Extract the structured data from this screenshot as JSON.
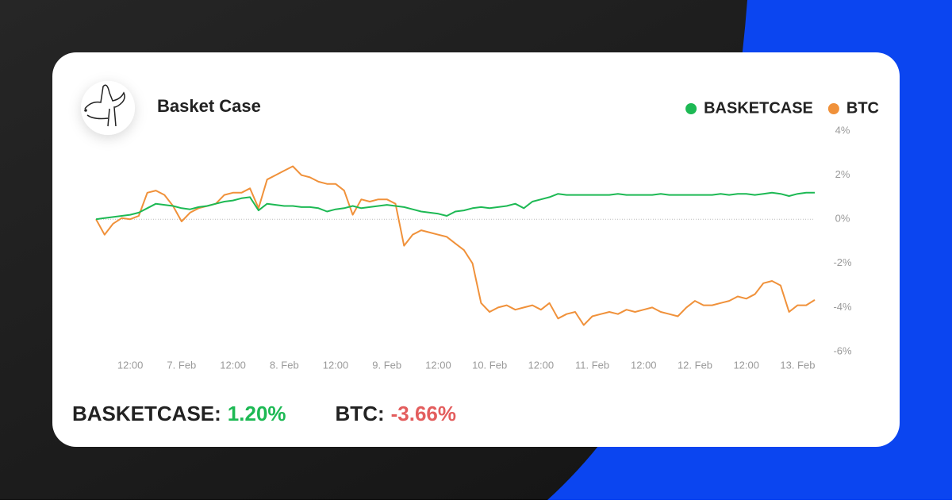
{
  "chart_data": {
    "type": "line",
    "title": "Basket Case",
    "x": [
      -20,
      -18,
      -16,
      -14,
      -12,
      -10,
      -8,
      -6,
      -4,
      -2,
      0,
      2,
      4,
      6,
      8,
      10,
      12,
      14,
      16,
      18,
      20,
      22,
      24,
      26,
      28,
      30,
      32,
      34,
      36,
      38,
      40,
      42,
      44,
      46,
      48,
      50,
      52,
      54,
      56,
      58,
      60,
      62,
      64,
      66,
      68,
      70,
      72,
      74,
      76,
      78,
      80,
      82,
      84,
      86,
      88,
      90,
      92,
      94,
      96,
      98,
      100,
      102,
      104,
      106,
      108,
      110,
      112,
      114,
      116,
      118,
      120,
      122,
      124,
      126,
      128,
      130,
      132,
      134,
      136,
      138,
      140,
      142,
      144,
      146,
      148
    ],
    "xlim": [
      -20,
      148
    ],
    "xticks": [
      {
        "value": -12,
        "label": "12:00"
      },
      {
        "value": 0,
        "label": "7. Feb"
      },
      {
        "value": 12,
        "label": "12:00"
      },
      {
        "value": 24,
        "label": "8. Feb"
      },
      {
        "value": 36,
        "label": "12:00"
      },
      {
        "value": 48,
        "label": "9. Feb"
      },
      {
        "value": 60,
        "label": "12:00"
      },
      {
        "value": 72,
        "label": "10. Feb"
      },
      {
        "value": 84,
        "label": "12:00"
      },
      {
        "value": 96,
        "label": "11. Feb"
      },
      {
        "value": 108,
        "label": "12:00"
      },
      {
        "value": 120,
        "label": "12. Feb"
      },
      {
        "value": 132,
        "label": "12:00"
      },
      {
        "value": 144,
        "label": "13. Feb"
      }
    ],
    "ylim": [
      -6,
      4
    ],
    "yticks": [
      {
        "value": 4,
        "label": "4%"
      },
      {
        "value": 2,
        "label": "2%"
      },
      {
        "value": 0,
        "label": "0%"
      },
      {
        "value": -2,
        "label": "-2%"
      },
      {
        "value": -4,
        "label": "-4%"
      },
      {
        "value": -6,
        "label": "-6%"
      }
    ],
    "grid": false,
    "series": [
      {
        "name": "BASKETCASE",
        "color": "#1db954",
        "values": [
          0,
          0.05,
          0.1,
          0.15,
          0.2,
          0.3,
          0.5,
          0.7,
          0.65,
          0.6,
          0.5,
          0.45,
          0.55,
          0.6,
          0.7,
          0.8,
          0.85,
          0.95,
          1.0,
          0.4,
          0.7,
          0.65,
          0.6,
          0.6,
          0.55,
          0.55,
          0.5,
          0.35,
          0.45,
          0.5,
          0.6,
          0.5,
          0.55,
          0.6,
          0.65,
          0.6,
          0.55,
          0.45,
          0.35,
          0.3,
          0.25,
          0.15,
          0.35,
          0.4,
          0.5,
          0.55,
          0.5,
          0.55,
          0.6,
          0.7,
          0.5,
          0.8,
          0.9,
          1.0,
          1.15,
          1.1,
          1.1,
          1.1,
          1.1,
          1.1,
          1.1,
          1.15,
          1.1,
          1.1,
          1.1,
          1.1,
          1.15,
          1.1,
          1.1,
          1.1,
          1.1,
          1.1,
          1.1,
          1.15,
          1.1,
          1.15,
          1.15,
          1.1,
          1.15,
          1.2,
          1.15,
          1.05,
          1.15,
          1.2,
          1.2
        ]
      },
      {
        "name": "BTC",
        "color": "#f0913a",
        "values": [
          0,
          -0.7,
          -0.2,
          0.05,
          0,
          0.15,
          1.2,
          1.3,
          1.1,
          0.6,
          -0.1,
          0.3,
          0.5,
          0.6,
          0.7,
          1.1,
          1.2,
          1.2,
          1.4,
          0.5,
          1.8,
          2.0,
          2.2,
          2.4,
          2.0,
          1.9,
          1.7,
          1.6,
          1.6,
          1.3,
          0.2,
          0.9,
          0.8,
          0.9,
          0.9,
          0.7,
          -1.2,
          -0.7,
          -0.5,
          -0.6,
          -0.7,
          -0.8,
          -1.1,
          -1.4,
          -2.0,
          -3.8,
          -4.2,
          -4.0,
          -3.9,
          -4.1,
          -4.0,
          -3.9,
          -4.1,
          -3.8,
          -4.5,
          -4.3,
          -4.2,
          -4.8,
          -4.4,
          -4.3,
          -4.2,
          -4.3,
          -4.1,
          -4.2,
          -4.1,
          -4.0,
          -4.2,
          -4.3,
          -4.4,
          -4.0,
          -3.7,
          -3.9,
          -3.9,
          -3.8,
          -3.7,
          -3.5,
          -3.6,
          -3.4,
          -2.9,
          -2.8,
          -3.0,
          -4.2,
          -3.9,
          -3.9,
          -3.66
        ]
      }
    ],
    "summary": [
      {
        "label": "BASKETCASE:",
        "value": "1.20%",
        "color": "#1db954"
      },
      {
        "label": "BTC:",
        "value": "-3.66%",
        "color": "#e35d5d"
      }
    ]
  }
}
